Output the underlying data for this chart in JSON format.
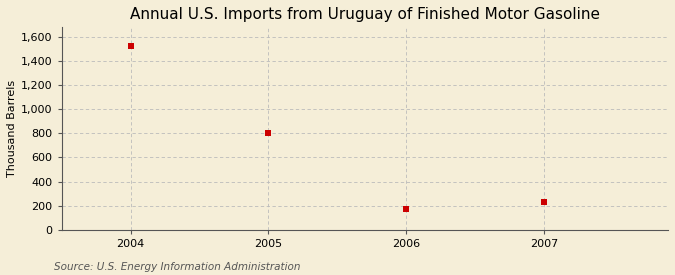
{
  "title": "Annual U.S. Imports from Uruguay of Finished Motor Gasoline",
  "ylabel": "Thousand Barrels",
  "source": "Source: U.S. Energy Information Administration",
  "years": [
    2004,
    2005,
    2006,
    2007
  ],
  "values": [
    1521,
    800,
    175,
    228
  ],
  "marker_color": "#cc0000",
  "marker_size": 5,
  "ylim": [
    0,
    1680
  ],
  "yticks": [
    0,
    200,
    400,
    600,
    800,
    1000,
    1200,
    1400,
    1600
  ],
  "ytick_labels": [
    "0",
    "200",
    "400",
    "600",
    "800",
    "1,000",
    "1,200",
    "1,400",
    "1,600"
  ],
  "xlim": [
    2003.5,
    2007.9
  ],
  "background_color": "#f5eed8",
  "plot_bg_color": "#f5eed8",
  "grid_color": "#bbbbbb",
  "spine_color": "#555555",
  "title_fontsize": 11,
  "axis_label_fontsize": 8,
  "tick_fontsize": 8,
  "source_fontsize": 7.5
}
